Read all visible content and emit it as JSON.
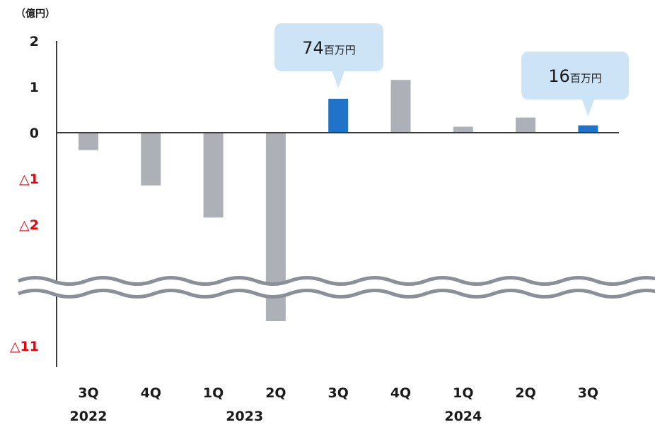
{
  "chart_data": {
    "type": "bar",
    "unit_label": "（億円）",
    "y_ticks": [
      {
        "value": 2,
        "label": "2",
        "negative": false
      },
      {
        "value": 1,
        "label": "1",
        "negative": false
      },
      {
        "value": 0,
        "label": "0",
        "negative": false
      },
      {
        "value": -1,
        "label": "△1",
        "negative": true
      },
      {
        "value": -2,
        "label": "△2",
        "negative": true
      },
      {
        "value": -11,
        "label": "△11",
        "negative": true
      }
    ],
    "ylim": [
      -11,
      2
    ],
    "axis_break": {
      "from": -3,
      "to": -10
    },
    "categories": [
      "3Q",
      "4Q",
      "1Q",
      "2Q",
      "3Q",
      "4Q",
      "1Q",
      "2Q",
      "3Q"
    ],
    "years": [
      {
        "label": "2022",
        "index": 0
      },
      {
        "label": "2023",
        "index": 2.5
      },
      {
        "label": "2024",
        "index": 6
      }
    ],
    "values": [
      -0.38,
      -1.15,
      -1.85,
      -11.1,
      0.74,
      1.15,
      0.13,
      0.33,
      0.16
    ],
    "bar_colors": [
      "#aeb0b7",
      "#aeb0b7",
      "#aeb0b7",
      "#aeb0b7",
      "#1f73c9",
      "#aeb0b7",
      "#aeb0b7",
      "#aeb0b7",
      "#1f73c9"
    ],
    "callouts": [
      {
        "index": 4,
        "number": "74",
        "unit": "百万円"
      },
      {
        "index": 8,
        "number": "16",
        "unit": "百万円"
      }
    ],
    "colors": {
      "bar": "#aeb0b7",
      "highlight": "#1f73c9",
      "callout_bg": "#cde4f6",
      "negative_label": "#e8000b",
      "axis": "#3a3a3a",
      "wave": "#8a8f98"
    }
  }
}
